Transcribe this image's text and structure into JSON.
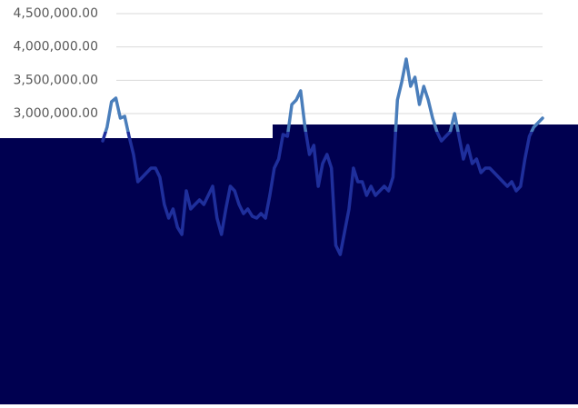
{
  "chart_data": {
    "type": "line",
    "ylim": [
      0,
      4500000
    ],
    "yticks": [
      {
        "value": 3000000,
        "label": "3,000,000.00"
      },
      {
        "value": 3500000,
        "label": "3,500,000.00"
      },
      {
        "value": 4000000,
        "label": "4,000,000.00"
      },
      {
        "value": 4500000,
        "label": "4,500,000.00"
      }
    ],
    "grid": true,
    "series": [
      {
        "color": "#4a7ebb",
        "values": [
          2590000,
          2795000,
          3177000,
          3232000,
          2932000,
          2959000,
          2659000,
          2386000,
          1977000,
          2045000,
          2114000,
          2182000,
          2182000,
          2045000,
          1636000,
          1432000,
          1568000,
          1295000,
          1186000,
          1841000,
          1568000,
          1636000,
          1705000,
          1636000,
          1773000,
          1909000,
          1432000,
          1186000,
          1568000,
          1909000,
          1841000,
          1636000,
          1500000,
          1568000,
          1459000,
          1432000,
          1500000,
          1432000,
          1773000,
          2182000,
          2318000,
          2686000,
          2659000,
          3136000,
          3205000,
          3341000,
          2795000,
          2386000,
          2523000,
          1909000,
          2250000,
          2386000,
          2182000,
          1023000,
          886000,
          1227000,
          1568000,
          2182000,
          1977000,
          1977000,
          1773000,
          1909000,
          1773000,
          1841000,
          1909000,
          1841000,
          2045000,
          3205000,
          3477000,
          3818000,
          3409000,
          3545000,
          3136000,
          3409000,
          3205000,
          2932000,
          2727000,
          2590000,
          2659000,
          2727000,
          3000000,
          2659000,
          2318000,
          2523000,
          2250000,
          2318000,
          2114000,
          2182000,
          2182000,
          2114000,
          2045000,
          1977000,
          1909000,
          1977000,
          1841000,
          1909000,
          2318000,
          2659000,
          2795000,
          2864000,
          2932000
        ]
      }
    ]
  }
}
